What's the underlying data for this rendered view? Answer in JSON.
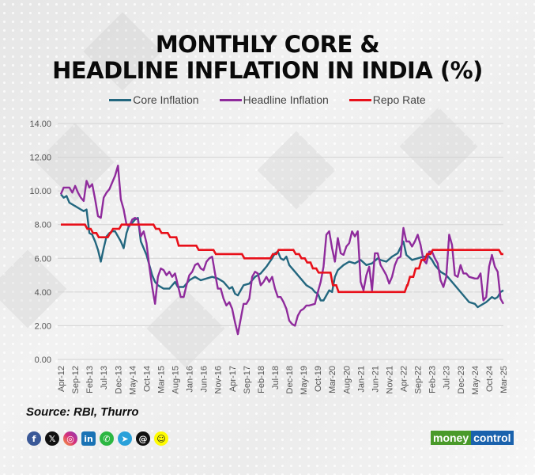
{
  "title_line1": "MONTHLY CORE &",
  "title_line2": "HEADLINE INFLATION IN INDIA (%)",
  "source": "Source: RBI, Thurro",
  "brand": {
    "part1": "money",
    "part2": "control"
  },
  "social_icons": [
    "facebook-icon",
    "x-icon",
    "instagram-icon",
    "linkedin-icon",
    "whatsapp-icon",
    "telegram-icon",
    "threads-icon",
    "snapchat-icon"
  ],
  "chart_data": {
    "type": "line",
    "title": "Monthly Core & Headline Inflation in India (%)",
    "xlabel": "",
    "ylabel": "",
    "ylim": [
      0,
      14
    ],
    "yticks": [
      "0.00",
      "2.00",
      "4.00",
      "6.00",
      "8.00",
      "10.00",
      "12.00",
      "14.00"
    ],
    "grid": true,
    "legend_position": "top",
    "x_start": "Apr-12",
    "x_end": "Mar-25",
    "months_total": 156,
    "xtick_labels": [
      "Apr-12",
      "Sep-12",
      "Feb-13",
      "Jul-13",
      "Dec-13",
      "May-14",
      "Oct-14",
      "Mar-15",
      "Aug-15",
      "Jan-16",
      "Jun-16",
      "Nov-16",
      "Apr-17",
      "Sep-17",
      "Feb-18",
      "Jul-18",
      "Dec-18",
      "May-19",
      "Oct-19",
      "Mar-20",
      "Aug-20",
      "Jan-21",
      "Jun-21",
      "Nov-21",
      "Apr-22",
      "Sep-22",
      "Feb-23",
      "Jul-23",
      "Dec-23",
      "May-24",
      "Oct-24",
      "Mar-25"
    ],
    "series": [
      {
        "name": "Core Inflation",
        "color": "#23677f",
        "points_month_value": [
          [
            0,
            9.8
          ],
          [
            1,
            9.6
          ],
          [
            2,
            9.7
          ],
          [
            3,
            9.3
          ],
          [
            5,
            9.1
          ],
          [
            7,
            8.9
          ],
          [
            8,
            8.8
          ],
          [
            9,
            8.9
          ],
          [
            10,
            7.5
          ],
          [
            11,
            7.4
          ],
          [
            12,
            7.0
          ],
          [
            13,
            6.5
          ],
          [
            14,
            5.8
          ],
          [
            15,
            6.6
          ],
          [
            16,
            7.3
          ],
          [
            17,
            7.5
          ],
          [
            18,
            7.6
          ],
          [
            19,
            7.6
          ],
          [
            20,
            7.3
          ],
          [
            21,
            7.0
          ],
          [
            22,
            6.6
          ],
          [
            23,
            7.5
          ],
          [
            24,
            8.0
          ],
          [
            25,
            8.1
          ],
          [
            26,
            8.3
          ],
          [
            27,
            8.4
          ],
          [
            28,
            7.0
          ],
          [
            29,
            6.6
          ],
          [
            30,
            6.2
          ],
          [
            31,
            5.6
          ],
          [
            32,
            5.0
          ],
          [
            33,
            4.6
          ],
          [
            34,
            4.4
          ],
          [
            36,
            4.2
          ],
          [
            38,
            4.2
          ],
          [
            40,
            4.6
          ],
          [
            41,
            4.3
          ],
          [
            43,
            4.3
          ],
          [
            45,
            4.7
          ],
          [
            47,
            4.9
          ],
          [
            49,
            4.7
          ],
          [
            51,
            4.8
          ],
          [
            53,
            4.9
          ],
          [
            55,
            4.8
          ],
          [
            57,
            4.6
          ],
          [
            59,
            4.2
          ],
          [
            60,
            4.3
          ],
          [
            61,
            3.9
          ],
          [
            62,
            3.8
          ],
          [
            64,
            4.4
          ],
          [
            66,
            4.5
          ],
          [
            68,
            4.9
          ],
          [
            70,
            5.1
          ],
          [
            72,
            5.5
          ],
          [
            74,
            6.0
          ],
          [
            75,
            6.3
          ],
          [
            76,
            6.4
          ],
          [
            77,
            6.0
          ],
          [
            78,
            5.9
          ],
          [
            79,
            6.1
          ],
          [
            80,
            5.6
          ],
          [
            82,
            5.2
          ],
          [
            84,
            4.8
          ],
          [
            86,
            4.4
          ],
          [
            88,
            4.2
          ],
          [
            89,
            4.0
          ],
          [
            90,
            3.9
          ],
          [
            91,
            3.5
          ],
          [
            92,
            3.5
          ],
          [
            93,
            3.8
          ],
          [
            94,
            4.1
          ],
          [
            95,
            4.0
          ],
          [
            96,
            4.9
          ],
          [
            97,
            5.3
          ],
          [
            99,
            5.6
          ],
          [
            101,
            5.8
          ],
          [
            103,
            5.7
          ],
          [
            105,
            5.9
          ],
          [
            107,
            5.6
          ],
          [
            109,
            5.7
          ],
          [
            111,
            6.0
          ],
          [
            112,
            5.9
          ],
          [
            114,
            5.8
          ],
          [
            116,
            6.1
          ],
          [
            118,
            6.3
          ],
          [
            120,
            7.0
          ],
          [
            121,
            6.2
          ],
          [
            123,
            5.9
          ],
          [
            125,
            6.0
          ],
          [
            127,
            6.1
          ],
          [
            129,
            6.1
          ],
          [
            130,
            5.9
          ],
          [
            131,
            5.6
          ],
          [
            133,
            5.2
          ],
          [
            135,
            5.0
          ],
          [
            137,
            4.6
          ],
          [
            139,
            4.2
          ],
          [
            141,
            3.8
          ],
          [
            143,
            3.4
          ],
          [
            145,
            3.3
          ],
          [
            146,
            3.1
          ],
          [
            147,
            3.2
          ],
          [
            149,
            3.4
          ],
          [
            151,
            3.7
          ],
          [
            152,
            3.6
          ],
          [
            153,
            3.7
          ],
          [
            154,
            4.0
          ],
          [
            155,
            4.1
          ]
        ]
      },
      {
        "name": "Headline Inflation",
        "color": "#8f2b9c",
        "points_month_value": [
          [
            0,
            9.8
          ],
          [
            1,
            10.2
          ],
          [
            3,
            10.2
          ],
          [
            4,
            9.9
          ],
          [
            5,
            10.3
          ],
          [
            6,
            9.9
          ],
          [
            7,
            9.6
          ],
          [
            8,
            9.4
          ],
          [
            9,
            10.6
          ],
          [
            10,
            10.2
          ],
          [
            11,
            10.4
          ],
          [
            12,
            9.5
          ],
          [
            13,
            8.5
          ],
          [
            14,
            8.4
          ],
          [
            15,
            9.6
          ],
          [
            16,
            9.9
          ],
          [
            17,
            10.1
          ],
          [
            18,
            10.5
          ],
          [
            19,
            10.9
          ],
          [
            20,
            11.5
          ],
          [
            21,
            9.5
          ],
          [
            22,
            8.9
          ],
          [
            23,
            8.0
          ],
          [
            24,
            7.9
          ],
          [
            25,
            8.3
          ],
          [
            26,
            8.4
          ],
          [
            27,
            8.3
          ],
          [
            28,
            7.3
          ],
          [
            29,
            7.6
          ],
          [
            30,
            6.9
          ],
          [
            31,
            5.5
          ],
          [
            32,
            4.3
          ],
          [
            33,
            3.3
          ],
          [
            34,
            4.9
          ],
          [
            35,
            5.4
          ],
          [
            36,
            5.3
          ],
          [
            37,
            5.0
          ],
          [
            38,
            5.2
          ],
          [
            39,
            4.9
          ],
          [
            40,
            5.1
          ],
          [
            41,
            4.4
          ],
          [
            42,
            3.7
          ],
          [
            43,
            3.7
          ],
          [
            44,
            4.4
          ],
          [
            45,
            5.0
          ],
          [
            46,
            5.2
          ],
          [
            47,
            5.6
          ],
          [
            48,
            5.7
          ],
          [
            49,
            5.4
          ],
          [
            50,
            5.3
          ],
          [
            51,
            5.8
          ],
          [
            52,
            6.0
          ],
          [
            53,
            6.1
          ],
          [
            54,
            5.1
          ],
          [
            55,
            4.2
          ],
          [
            56,
            4.2
          ],
          [
            57,
            3.6
          ],
          [
            58,
            3.2
          ],
          [
            59,
            3.4
          ],
          [
            60,
            3.0
          ],
          [
            61,
            2.2
          ],
          [
            62,
            1.5
          ],
          [
            63,
            2.4
          ],
          [
            64,
            3.3
          ],
          [
            65,
            3.3
          ],
          [
            66,
            3.6
          ],
          [
            67,
            4.9
          ],
          [
            68,
            5.2
          ],
          [
            69,
            5.1
          ],
          [
            70,
            4.4
          ],
          [
            71,
            4.6
          ],
          [
            72,
            4.9
          ],
          [
            73,
            4.6
          ],
          [
            74,
            4.9
          ],
          [
            75,
            4.2
          ],
          [
            76,
            3.7
          ],
          [
            77,
            3.7
          ],
          [
            78,
            3.4
          ],
          [
            79,
            3.0
          ],
          [
            80,
            2.3
          ],
          [
            81,
            2.1
          ],
          [
            82,
            2.0
          ],
          [
            83,
            2.6
          ],
          [
            84,
            2.9
          ],
          [
            85,
            3.0
          ],
          [
            86,
            3.2
          ],
          [
            87,
            3.2
          ],
          [
            89,
            3.3
          ],
          [
            90,
            4.0
          ],
          [
            91,
            4.6
          ],
          [
            92,
            5.5
          ],
          [
            93,
            7.4
          ],
          [
            94,
            7.6
          ],
          [
            95,
            6.6
          ],
          [
            96,
            5.8
          ],
          [
            97,
            7.2
          ],
          [
            98,
            6.3
          ],
          [
            99,
            6.2
          ],
          [
            100,
            6.7
          ],
          [
            101,
            6.9
          ],
          [
            102,
            7.6
          ],
          [
            103,
            7.3
          ],
          [
            104,
            7.6
          ],
          [
            105,
            4.6
          ],
          [
            106,
            4.1
          ],
          [
            107,
            5.0
          ],
          [
            108,
            5.5
          ],
          [
            109,
            4.1
          ],
          [
            110,
            6.3
          ],
          [
            111,
            6.3
          ],
          [
            112,
            5.6
          ],
          [
            113,
            5.3
          ],
          [
            114,
            5.0
          ],
          [
            115,
            4.5
          ],
          [
            116,
            4.9
          ],
          [
            117,
            5.6
          ],
          [
            118,
            6.0
          ],
          [
            119,
            6.1
          ],
          [
            120,
            7.8
          ],
          [
            121,
            7.0
          ],
          [
            122,
            7.0
          ],
          [
            123,
            6.7
          ],
          [
            124,
            7.0
          ],
          [
            125,
            7.4
          ],
          [
            126,
            6.8
          ],
          [
            127,
            5.9
          ],
          [
            128,
            5.7
          ],
          [
            129,
            6.4
          ],
          [
            130,
            6.4
          ],
          [
            131,
            6.0
          ],
          [
            132,
            5.7
          ],
          [
            133,
            4.7
          ],
          [
            134,
            4.3
          ],
          [
            135,
            4.9
          ],
          [
            136,
            7.4
          ],
          [
            137,
            6.8
          ],
          [
            138,
            5.0
          ],
          [
            139,
            4.9
          ],
          [
            140,
            5.6
          ],
          [
            141,
            5.1
          ],
          [
            142,
            5.1
          ],
          [
            143,
            4.9
          ],
          [
            145,
            4.8
          ],
          [
            146,
            4.8
          ],
          [
            147,
            5.1
          ],
          [
            148,
            3.5
          ],
          [
            149,
            3.7
          ],
          [
            150,
            5.5
          ],
          [
            151,
            6.2
          ],
          [
            152,
            5.5
          ],
          [
            153,
            5.2
          ],
          [
            154,
            3.6
          ],
          [
            155,
            3.3
          ]
        ]
      },
      {
        "name": "Repo Rate",
        "color": "#e8101a",
        "steps_month_value": [
          [
            0,
            8.0
          ],
          [
            9,
            7.75
          ],
          [
            11,
            7.5
          ],
          [
            13,
            7.25
          ],
          [
            17,
            7.5
          ],
          [
            18,
            7.75
          ],
          [
            21,
            8.0
          ],
          [
            33,
            7.75
          ],
          [
            35,
            7.5
          ],
          [
            38,
            7.25
          ],
          [
            41,
            6.75
          ],
          [
            48,
            6.5
          ],
          [
            54,
            6.25
          ],
          [
            64,
            6.0
          ],
          [
            74,
            6.25
          ],
          [
            76,
            6.5
          ],
          [
            82,
            6.25
          ],
          [
            84,
            6.0
          ],
          [
            86,
            5.75
          ],
          [
            88,
            5.4
          ],
          [
            90,
            5.15
          ],
          [
            95,
            4.4
          ],
          [
            97,
            4.0
          ],
          [
            121,
            4.4
          ],
          [
            122,
            4.9
          ],
          [
            124,
            5.4
          ],
          [
            126,
            5.9
          ],
          [
            128,
            6.25
          ],
          [
            130,
            6.5
          ],
          [
            154,
            6.25
          ]
        ]
      }
    ]
  }
}
